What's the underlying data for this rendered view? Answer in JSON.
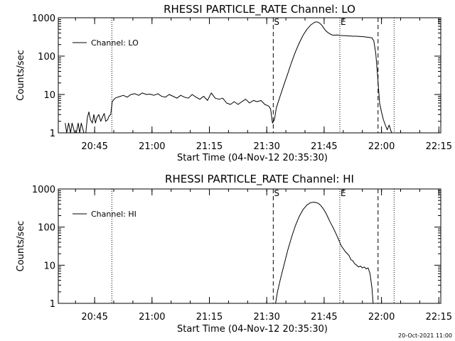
{
  "footer": {
    "timestamp": "20-Oct-2021 11:00"
  },
  "chart_data": [
    {
      "type": "line",
      "title": "RHESSI PARTICLE_RATE Channel: LO",
      "xlabel": "Start Time (04-Nov-12 20:35:30)",
      "ylabel": "Counts/sec",
      "yscale": "log",
      "ylim": [
        1,
        1000
      ],
      "xlim_minutes": [
        0,
        100
      ],
      "x_tick_labels": [
        "20:45",
        "21:00",
        "21:15",
        "21:30",
        "21:45",
        "22:00",
        "22:15"
      ],
      "x_tick_minutes": [
        9.5,
        24.5,
        39.5,
        54.5,
        69.5,
        84.5,
        99.5
      ],
      "y_tick_labels": [
        "1",
        "10",
        "100",
        "1000"
      ],
      "y_tick_values": [
        1,
        10,
        100,
        1000
      ],
      "legend": {
        "position": "top-left",
        "label": "Channel: LO"
      },
      "vlines": [
        {
          "style": "dotted",
          "minute": 14.0,
          "label": ""
        },
        {
          "style": "dashed",
          "minute": 56.2,
          "label": "S"
        },
        {
          "style": "dotted",
          "minute": 73.6,
          "label": "E"
        },
        {
          "style": "dashed",
          "minute": 83.6,
          "label": ""
        },
        {
          "style": "dotted",
          "minute": 87.8,
          "label": ""
        }
      ],
      "series": [
        {
          "name": "Channel: LO",
          "x_minutes": [
            1.8,
            2.2,
            2.7,
            3.2,
            3.6,
            4.3,
            4.7,
            5.2,
            5.6,
            6.0,
            6.7,
            7.2,
            7.6,
            8.0,
            8.4,
            8.9,
            9.3,
            9.7,
            10.1,
            10.6,
            11.1,
            11.5,
            12.0,
            12.4,
            12.9,
            13.3,
            13.7,
            14.1,
            14.6,
            15.0,
            16.0,
            17.0,
            18.0,
            19.0,
            20.0,
            21.0,
            22.0,
            23.0,
            24.0,
            25.0,
            26.0,
            27.0,
            28.0,
            29.0,
            30.0,
            31.0,
            32.0,
            33.0,
            34.0,
            35.0,
            36.0,
            37.0,
            38.0,
            39.0,
            40.0,
            41.0,
            42.0,
            43.0,
            44.0,
            45.0,
            46.0,
            47.0,
            48.0,
            49.0,
            50.0,
            51.0,
            52.0,
            53.0,
            54.0,
            55.0,
            55.5,
            56.0,
            56.5,
            57.0,
            58.0,
            59.0,
            60.0,
            61.0,
            62.0,
            63.0,
            64.0,
            65.0,
            66.0,
            67.0,
            67.5,
            68.0,
            68.5,
            69.0,
            69.5,
            70.0,
            70.5,
            71.0,
            71.5,
            72.0,
            73.0,
            74.0,
            75.0,
            76.0,
            77.0,
            78.0,
            79.0,
            80.0,
            81.0,
            82.0,
            82.5,
            83.0,
            83.5,
            84.0,
            84.5,
            85.0,
            85.5,
            86.0,
            86.5,
            87.0,
            87.2
          ],
          "y": [
            1.8,
            1.0,
            1.8,
            1.0,
            1.8,
            1.0,
            1.0,
            1.8,
            1.0,
            1.8,
            1.0,
            1.0,
            2.5,
            3.5,
            2.2,
            1.8,
            3.0,
            1.8,
            2.5,
            3.0,
            2.0,
            2.5,
            3.2,
            2.0,
            2.2,
            2.8,
            3.0,
            6.5,
            7.5,
            8.2,
            8.8,
            9.5,
            8.5,
            10.0,
            10.5,
            9.5,
            11.0,
            10.0,
            10.2,
            9.5,
            10.5,
            9.0,
            8.5,
            10.0,
            9.0,
            8.0,
            9.5,
            8.5,
            8.0,
            10.0,
            8.5,
            7.5,
            9.0,
            7.0,
            11.0,
            8.0,
            7.5,
            8.0,
            6.0,
            5.5,
            6.5,
            5.5,
            6.5,
            7.5,
            6.0,
            7.0,
            6.5,
            7.0,
            5.5,
            5.0,
            4.2,
            1.8,
            2.2,
            4.5,
            9.0,
            18.0,
            35.0,
            70.0,
            130.0,
            220.0,
            350.0,
            500.0,
            650.0,
            760.0,
            780.0,
            760.0,
            700.0,
            620.0,
            520.0,
            450.0,
            410.0,
            380.0,
            360.0,
            350.0,
            355.0,
            345.0,
            340.0,
            335.0,
            330.0,
            330.0,
            325.0,
            320.0,
            310.0,
            300.0,
            250.0,
            120.0,
            30.0,
            6.0,
            3.5,
            2.2,
            1.6,
            1.2,
            1.6,
            1.1,
            1.0
          ]
        }
      ]
    },
    {
      "type": "line",
      "title": "RHESSI PARTICLE_RATE Channel: HI",
      "xlabel": "Start Time (04-Nov-12 20:35:30)",
      "ylabel": "Counts/sec",
      "yscale": "log",
      "ylim": [
        1,
        1000
      ],
      "xlim_minutes": [
        0,
        100
      ],
      "x_tick_labels": [
        "20:45",
        "21:00",
        "21:15",
        "21:30",
        "21:45",
        "22:00",
        "22:15"
      ],
      "x_tick_minutes": [
        9.5,
        24.5,
        39.5,
        54.5,
        69.5,
        84.5,
        99.5
      ],
      "y_tick_labels": [
        "1",
        "10",
        "100",
        "1000"
      ],
      "y_tick_values": [
        1,
        10,
        100,
        1000
      ],
      "legend": {
        "position": "top-left",
        "label": "Channel: HI"
      },
      "vlines": [
        {
          "style": "dotted",
          "minute": 14.0,
          "label": ""
        },
        {
          "style": "dashed",
          "minute": 56.2,
          "label": "S"
        },
        {
          "style": "dotted",
          "minute": 73.6,
          "label": "E"
        },
        {
          "style": "dashed",
          "minute": 83.6,
          "label": ""
        },
        {
          "style": "dotted",
          "minute": 87.8,
          "label": ""
        }
      ],
      "series": [
        {
          "name": "Channel: HI",
          "x_minutes": [
            56.8,
            57.3,
            58.0,
            59.0,
            60.0,
            61.0,
            62.0,
            63.0,
            64.0,
            65.0,
            66.0,
            67.0,
            68.0,
            68.5,
            69.0,
            69.5,
            70.0,
            70.5,
            71.0,
            72.0,
            73.0,
            74.0,
            75.0,
            76.0,
            76.5,
            77.0,
            77.5,
            78.0,
            78.5,
            79.0,
            79.5,
            80.0,
            80.5,
            81.0,
            81.5,
            82.0,
            82.3
          ],
          "y": [
            1.0,
            2.0,
            4.0,
            10.0,
            25.0,
            55.0,
            110.0,
            190.0,
            290.0,
            380.0,
            440.0,
            450.0,
            420.0,
            380.0,
            330.0,
            280.0,
            230.0,
            180.0,
            140.0,
            90.0,
            55.0,
            32.0,
            23.0,
            18.0,
            14.0,
            13.0,
            11.0,
            10.0,
            9.0,
            9.5,
            8.5,
            9.0,
            8.0,
            8.5,
            6.0,
            2.5,
            1.0
          ]
        }
      ]
    }
  ]
}
